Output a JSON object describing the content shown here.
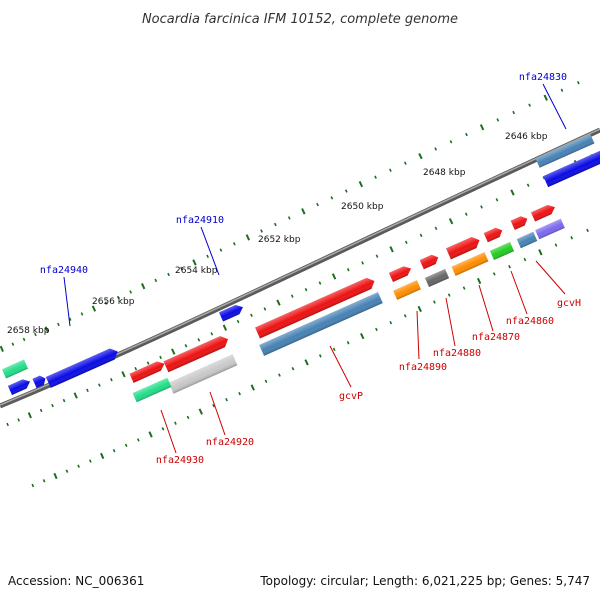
{
  "title": "Nocardia farcinica IFM 10152, complete genome",
  "ticks": [
    "2646 kbp",
    "2648 kbp",
    "2650 kbp",
    "2652 kbp",
    "2654 kbp",
    "2656 kbp",
    "2658 kbp"
  ],
  "labels": {
    "forward": [
      "nfa24830",
      "nfa24910",
      "nfa24940"
    ],
    "reverse": [
      "gcvH",
      "nfa24860",
      "nfa24870",
      "nfa24880",
      "nfa24890",
      "gcvP",
      "nfa24920",
      "nfa24930"
    ]
  },
  "colors": {
    "forward_label": "#0000cc",
    "reverse_label": "#cc0000",
    "backbone": "#808080",
    "tick": "#1e6e1e",
    "blue": "#0a0ae6",
    "steel": "#4682b4",
    "red": "#ee1111",
    "orange": "#ff8c00",
    "green": "#22cc22",
    "teal": "#22dd88",
    "gray": "#666666",
    "lightgray": "#c8c8c8",
    "violet": "#7b68ee"
  },
  "footer": {
    "accession": "Accession: NC_006361",
    "summary": "Topology: circular; Length: 6,021,225 bp; Genes: 5,747"
  }
}
